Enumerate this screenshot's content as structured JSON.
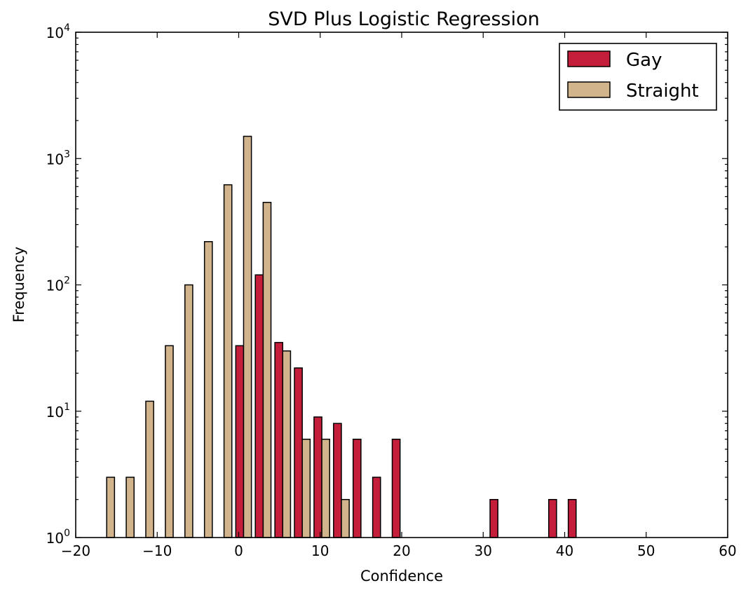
{
  "chart_data": {
    "type": "bar",
    "title": "SVD Plus Logistic Regression",
    "xlabel": "Confidence",
    "ylabel": "Frequency",
    "xlim": [
      -20,
      60
    ],
    "ylim": [
      1,
      10000
    ],
    "yscale": "log",
    "grid": false,
    "legend_position": "top-right",
    "x_ticks": [
      -20,
      -10,
      0,
      10,
      20,
      30,
      40,
      50,
      60
    ],
    "x_tick_labels": [
      "−20",
      "−10",
      "0",
      "10",
      "20",
      "30",
      "40",
      "50",
      "60"
    ],
    "y_ticks": [
      1,
      10,
      100,
      1000,
      10000
    ],
    "y_tick_bases": [
      "10",
      "10",
      "10",
      "10",
      "10"
    ],
    "y_tick_exponents": [
      "0",
      "1",
      "2",
      "3",
      "4"
    ],
    "bin_width": 2.4,
    "bin_starts": [
      -19.8,
      -17.4,
      -15.0,
      -12.6,
      -10.2,
      -7.8,
      -5.4,
      -3.0,
      -0.6,
      1.8,
      4.2,
      6.6,
      9.0,
      11.4,
      13.8,
      16.2,
      18.6,
      21.0,
      23.4,
      25.8,
      28.2,
      30.6,
      33.0,
      35.4,
      37.8,
      40.2,
      42.6,
      45.0,
      47.4,
      49.8,
      52.2
    ],
    "series": [
      {
        "name": "Gay",
        "color": "#c41e3a",
        "values": [
          0,
          0,
          0,
          0,
          0,
          0,
          0,
          0,
          33,
          120,
          35,
          22,
          9,
          8,
          6,
          3,
          6,
          0,
          0,
          0,
          0,
          2,
          0,
          0,
          2,
          2,
          0,
          0,
          0,
          0,
          0
        ]
      },
      {
        "name": "Straight",
        "color": "#d2b48c",
        "values": [
          0,
          3,
          3,
          12,
          33,
          100,
          220,
          620,
          1500,
          450,
          30,
          6,
          6,
          2,
          0,
          0,
          0,
          0,
          0,
          0,
          0,
          0,
          0,
          0,
          0,
          0,
          0,
          0,
          0,
          0,
          0
        ]
      }
    ]
  }
}
